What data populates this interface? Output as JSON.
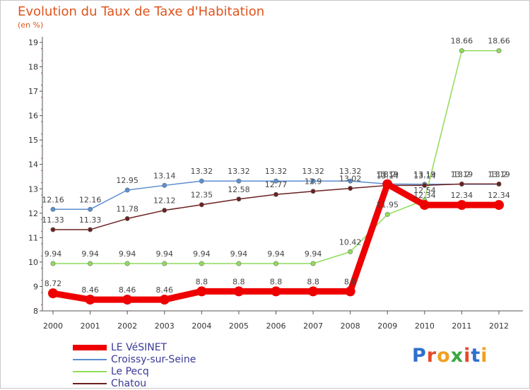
{
  "brand": {
    "letters": [
      "P",
      "r",
      "o",
      "x",
      "i",
      "t",
      "i"
    ],
    "colors": [
      "#2f6fd0",
      "#e8492a",
      "#f0a020",
      "#3aa840",
      "#e8492a",
      "#2f6fd0",
      "#f0a020"
    ]
  },
  "chart_data": {
    "type": "line",
    "title": "Evolution du Taux de Taxe d'Habitation",
    "subtitle": "(en %)",
    "xlabel": "",
    "ylabel": "",
    "x": [
      "2000",
      "2001",
      "2002",
      "2003",
      "2004",
      "2005",
      "2006",
      "2007",
      "2008",
      "2009",
      "2010",
      "2011",
      "2012"
    ],
    "ylim": [
      8,
      19
    ],
    "yticks": [
      8,
      9,
      10,
      11,
      12,
      13,
      14,
      15,
      16,
      17,
      18,
      19
    ],
    "grid": false,
    "legend_position": "bottom-left",
    "series": [
      {
        "name": "LE VéSINET",
        "color": "#ee0000",
        "thick": true,
        "values": [
          8.72,
          8.46,
          8.46,
          8.46,
          8.8,
          8.8,
          8.8,
          8.8,
          8.8,
          13.19,
          12.34,
          12.34,
          12.34
        ],
        "labels": [
          "8.72",
          "8.46",
          "8.46",
          "8.46",
          "8.8",
          "8.8",
          "8.8",
          "8.8",
          "8.8",
          "13.19",
          "12.34",
          "12.34",
          "12.34"
        ]
      },
      {
        "name": "Croissy-sur-Seine",
        "color": "#5b8ed0",
        "thick": false,
        "values": [
          12.16,
          12.16,
          12.95,
          13.14,
          13.32,
          13.32,
          13.32,
          13.32,
          13.32,
          13.2,
          13.19,
          13.19,
          13.19
        ],
        "labels": [
          "12.16",
          "12.16",
          "12.95",
          "13.14",
          "13.32",
          "13.32",
          "13.32",
          "13.32",
          "13.32",
          "13.2",
          "13.19",
          "13.19",
          "13.19"
        ]
      },
      {
        "name": "Le Pecq",
        "color": "#8fdc5a",
        "thick": false,
        "values": [
          9.94,
          9.94,
          9.94,
          9.94,
          9.94,
          9.94,
          9.94,
          9.94,
          10.42,
          11.95,
          12.54,
          18.66,
          18.66
        ],
        "labels": [
          "9.94",
          "9.94",
          "9.94",
          "9.94",
          "9.94",
          "9.94",
          "9.94",
          "9.94",
          "10.42",
          "11.95",
          "12.54",
          "18.66",
          "18.66"
        ]
      },
      {
        "name": "Chatou",
        "color": "#6a2020",
        "thick": false,
        "values": [
          11.33,
          11.33,
          11.78,
          12.12,
          12.35,
          12.58,
          12.77,
          12.9,
          13.02,
          13.14,
          13.14,
          13.2,
          13.2
        ],
        "labels": [
          "11.33",
          "11.33",
          "11.78",
          "12.12",
          "12.35",
          "12.58",
          "12.77",
          "12.9",
          "13.02",
          "13.14",
          "13.14",
          "13.2",
          "13.2"
        ]
      }
    ]
  }
}
